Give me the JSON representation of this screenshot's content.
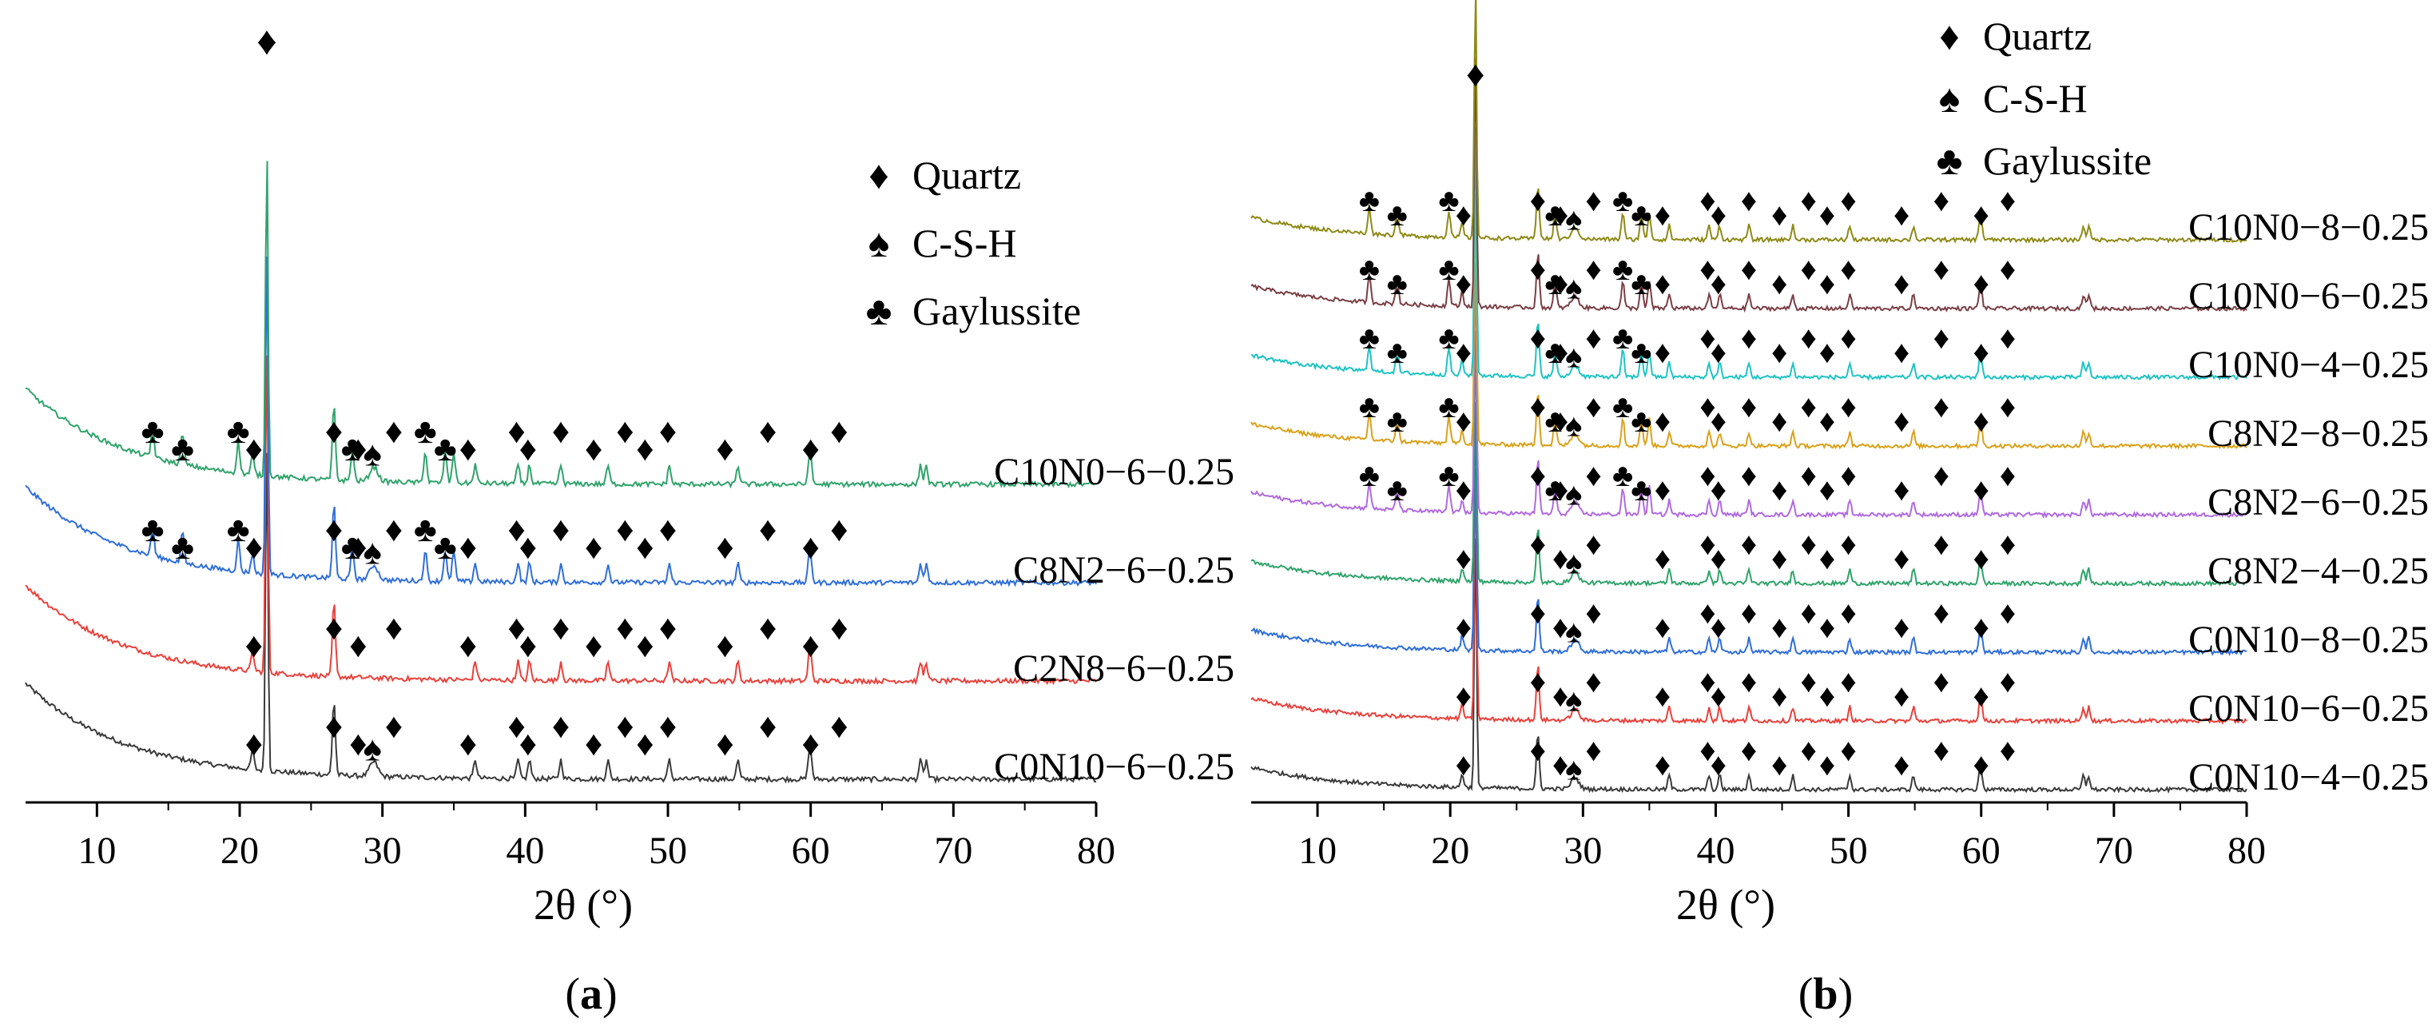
{
  "chart_data": [
    {
      "type": "line",
      "panel_label": "a",
      "xlabel": "2θ (°)",
      "ylabel": "",
      "xlim": [
        5,
        80
      ],
      "xticks": [
        "10",
        "20",
        "30",
        "40",
        "50",
        "60",
        "70",
        "80"
      ],
      "grid": false,
      "legend_position": "top-right",
      "legend": [
        {
          "symbol": "♦",
          "label": "Quartz"
        },
        {
          "symbol": "♠",
          "label": "C-S-H"
        },
        {
          "symbol": "♣",
          "label": "Gaylussite"
        }
      ],
      "series": [
        {
          "name": "C0N10−6−0.25",
          "color": "#3a3a3a",
          "baseline": 0.0,
          "bg": 0.9,
          "quartz": 1,
          "csh": 1,
          "gay": 0
        },
        {
          "name": "C2N8−6−0.25",
          "color": "#e8413c",
          "baseline": 0.28,
          "bg": 0.85,
          "quartz": 1,
          "csh": 0,
          "gay": 0
        },
        {
          "name": "C8N2−6−0.25",
          "color": "#2f6ed8",
          "baseline": 0.56,
          "bg": 0.8,
          "quartz": 1,
          "csh": 1,
          "gay": 1
        },
        {
          "name": "C10N0−6−0.25",
          "color": "#2fa36b",
          "baseline": 0.84,
          "bg": 0.8,
          "quartz": 1,
          "csh": 1,
          "gay": 1
        }
      ]
    },
    {
      "type": "line",
      "panel_label": "b",
      "xlabel": "2θ (°)",
      "ylabel": "",
      "xlim": [
        5,
        80
      ],
      "xticks": [
        "10",
        "20",
        "30",
        "40",
        "50",
        "60",
        "70",
        "80"
      ],
      "grid": false,
      "legend_position": "top-right",
      "legend": [
        {
          "symbol": "♦",
          "label": "Quartz"
        },
        {
          "symbol": "♠",
          "label": "C-S-H"
        },
        {
          "symbol": "♣",
          "label": "Gaylussite"
        }
      ],
      "series": [
        {
          "name": "C0N10−4−0.25",
          "color": "#3a3a3a",
          "baseline": 0.0,
          "bg": 0.5,
          "quartz": 1,
          "csh": 1,
          "gay": 0
        },
        {
          "name": "C0N10−6−0.25",
          "color": "#e8413c",
          "baseline": 0.12,
          "bg": 0.5,
          "quartz": 1,
          "csh": 1,
          "gay": 0
        },
        {
          "name": "C0N10−8−0.25",
          "color": "#2f6ed8",
          "baseline": 0.24,
          "bg": 0.5,
          "quartz": 1,
          "csh": 1,
          "gay": 0
        },
        {
          "name": "C8N2−4−0.25",
          "color": "#2fa36b",
          "baseline": 0.36,
          "bg": 0.5,
          "quartz": 1,
          "csh": 1,
          "gay": 0
        },
        {
          "name": "C8N2−6−0.25",
          "color": "#b06adf",
          "baseline": 0.48,
          "bg": 0.5,
          "quartz": 1,
          "csh": 1,
          "gay": 1
        },
        {
          "name": "C8N2−8−0.25",
          "color": "#d9a21b",
          "baseline": 0.6,
          "bg": 0.5,
          "quartz": 1,
          "csh": 1,
          "gay": 1
        },
        {
          "name": "C10N0−4−0.25",
          "color": "#1fc3c3",
          "baseline": 0.72,
          "bg": 0.5,
          "quartz": 1,
          "csh": 1,
          "gay": 1
        },
        {
          "name": "C10N0−6−0.25",
          "color": "#7a3e45",
          "baseline": 0.84,
          "bg": 0.5,
          "quartz": 1,
          "csh": 1,
          "gay": 1
        },
        {
          "name": "C10N0−8−0.25",
          "color": "#8e8a17",
          "baseline": 0.96,
          "bg": 0.5,
          "quartz": 1,
          "csh": 1,
          "gay": 1
        }
      ]
    }
  ],
  "peaks": {
    "quartz": [
      20.9,
      26.6,
      36.5,
      39.5,
      40.3,
      42.5,
      45.8,
      50.1,
      54.9,
      59.9,
      60.0,
      67.7,
      68.1
    ],
    "quartz_main": 21.9,
    "csh": [
      29.4
    ],
    "gaylussite": [
      13.9,
      16.0,
      19.9,
      27.9,
      33.0,
      34.4,
      35.0
    ]
  },
  "markers_a": {
    "quartz": [
      21.0,
      26.6,
      28.3,
      30.8,
      36.0,
      39.4,
      40.2,
      42.5,
      44.8,
      47.0,
      48.4,
      50.0,
      54.0,
      57.0,
      60.0,
      62.0
    ],
    "csh": [
      29.3
    ],
    "gaylussite": [
      13.9,
      16.0,
      19.9,
      27.9,
      33.0,
      34.4
    ]
  },
  "markers_b": {
    "quartz": [
      21.0,
      26.6,
      28.3,
      30.8,
      36.0,
      39.4,
      40.2,
      42.5,
      44.8,
      47.0,
      48.4,
      50.0,
      54.0,
      57.0,
      60.0,
      62.0
    ],
    "csh": [
      29.3
    ],
    "gaylussite": [
      13.9,
      16.0,
      19.9,
      27.9,
      33.0,
      34.4
    ]
  }
}
